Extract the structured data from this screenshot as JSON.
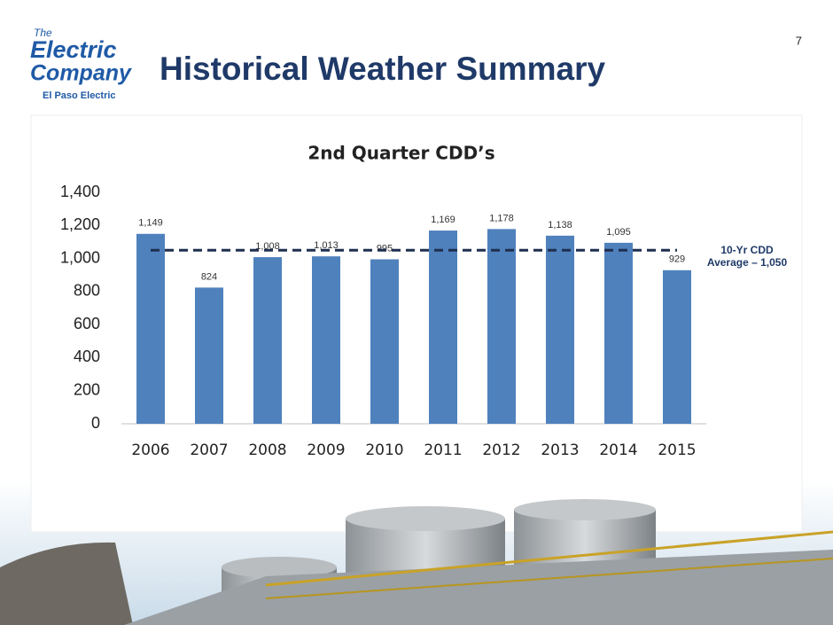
{
  "page_number": "7",
  "logo": {
    "the": "The",
    "line1": "Electric",
    "line2": "Company",
    "company": "El Paso Electric"
  },
  "title": "Historical Weather Summary",
  "chart_data": {
    "type": "bar",
    "title": "2nd Quarter CDD’s",
    "categories": [
      "2006",
      "2007",
      "2008",
      "2009",
      "2010",
      "2011",
      "2012",
      "2013",
      "2014",
      "2015"
    ],
    "values": [
      1149,
      824,
      1008,
      1013,
      995,
      1169,
      1178,
      1138,
      1095,
      929
    ],
    "value_labels": [
      "1,149",
      "824",
      "1,008",
      "1,013",
      "995",
      "1,169",
      "1,178",
      "1,138",
      "1,095",
      "929"
    ],
    "color": "#4f81bd",
    "ylim": [
      0,
      1400
    ],
    "yticks": [
      0,
      200,
      400,
      600,
      800,
      {
        "value": 1000,
        "label": "1,000"
      },
      {
        "value": 1200,
        "label": "1,200"
      },
      {
        "value": 1400,
        "label": "1,400"
      }
    ],
    "grid": false,
    "average": {
      "value": 1050,
      "label": [
        "10-Yr CDD",
        "Average – 1,050"
      ]
    }
  }
}
